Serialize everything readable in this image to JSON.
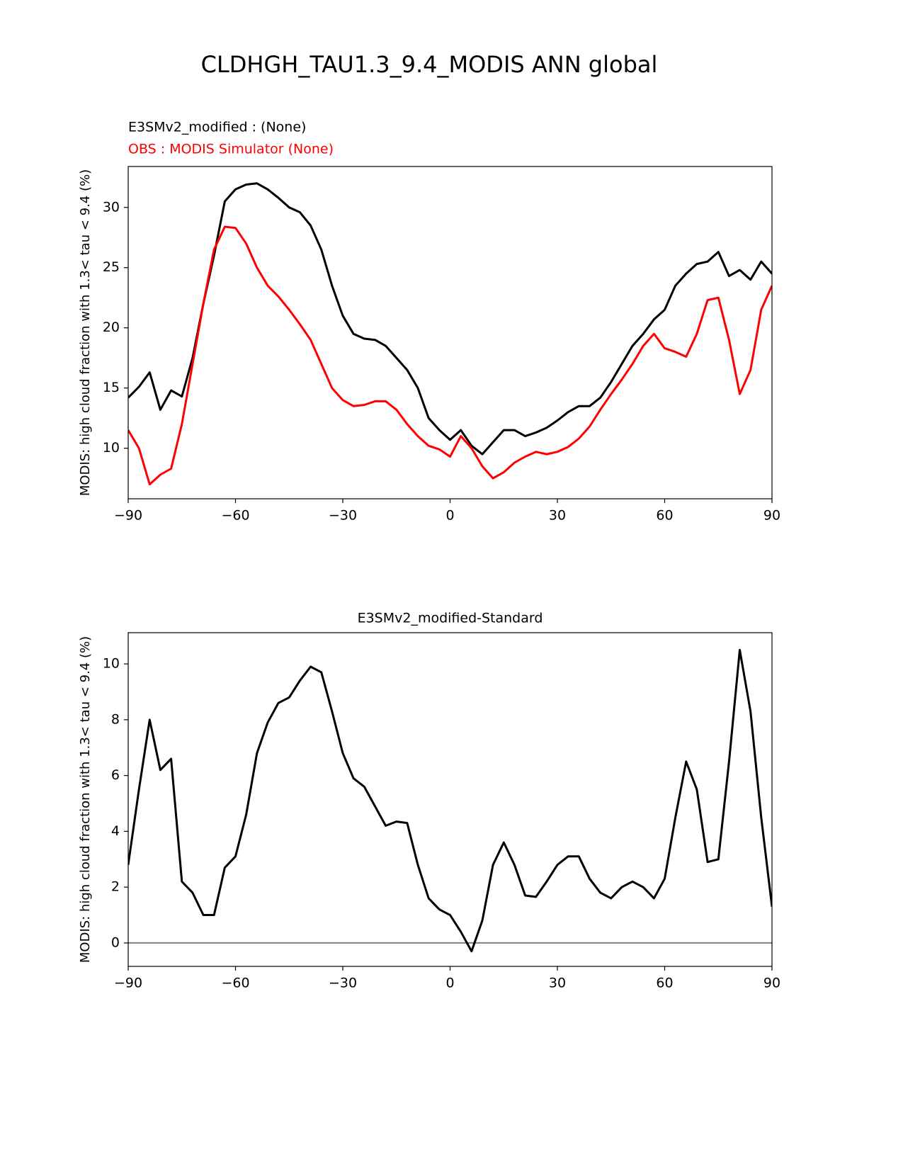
{
  "title": "CLDHGH_TAU1.3_9.4_MODIS ANN global",
  "chart_data": [
    {
      "type": "line",
      "ylabel": "MODIS: high cloud fraction with 1.3< tau < 9.4 (%)",
      "x": [
        -90,
        -87,
        -84,
        -81,
        -78,
        -75,
        -72,
        -69,
        -66,
        -63,
        -60,
        -57,
        -54,
        -51,
        -48,
        -45,
        -42,
        -39,
        -36,
        -33,
        -30,
        -27,
        -24,
        -21,
        -18,
        -15,
        -12,
        -9,
        -6,
        -3,
        0,
        3,
        6,
        9,
        12,
        15,
        18,
        21,
        24,
        27,
        30,
        33,
        36,
        39,
        42,
        45,
        48,
        51,
        54,
        57,
        60,
        63,
        66,
        69,
        72,
        75,
        78,
        81,
        84,
        87,
        90
      ],
      "series": [
        {
          "name": "E3SMv2_modified :   (None)",
          "color": "#000000",
          "values": [
            14.2,
            15.1,
            16.3,
            13.2,
            14.8,
            14.3,
            17.5,
            22,
            26,
            30.5,
            31.5,
            31.9,
            32.0,
            31.5,
            30.8,
            30,
            29.6,
            28.5,
            26.5,
            23.5,
            21,
            19.5,
            19.1,
            19.0,
            18.5,
            17.5,
            16.5,
            15,
            12.5,
            11.5,
            10.7,
            11.5,
            10.2,
            9.5,
            10.5,
            11.5,
            11.5,
            11.0,
            11.3,
            11.7,
            12.3,
            13.0,
            13.5,
            13.5,
            14.2,
            15.5,
            17,
            18.5,
            19.5,
            20.7,
            21.5,
            23.5,
            24.5,
            25.3,
            25.5,
            26.3,
            24.3,
            24.8,
            24.0,
            25.5,
            24.5
          ]
        },
        {
          "name": "OBS : MODIS Simulator (None)",
          "color": "#ff0000",
          "values": [
            11.5,
            10,
            7.0,
            7.8,
            8.3,
            12,
            17,
            22,
            26.5,
            28.4,
            28.3,
            27,
            25,
            23.5,
            22.6,
            21.5,
            20.3,
            19.0,
            17,
            15,
            14,
            13.5,
            13.6,
            13.9,
            13.9,
            13.2,
            12,
            11,
            10.2,
            9.9,
            9.3,
            11,
            10,
            8.5,
            7.5,
            8,
            8.8,
            9.3,
            9.7,
            9.5,
            9.7,
            10.1,
            10.8,
            11.8,
            13.2,
            14.5,
            15.7,
            17,
            18.5,
            19.5,
            18.3,
            18,
            17.6,
            19.5,
            22.3,
            22.5,
            19,
            14.5,
            16.5,
            21.5,
            23.5
          ]
        }
      ],
      "xlim": [
        -90,
        90
      ],
      "xticks": [
        {
          "value": -90,
          "label": "−90"
        },
        {
          "value": -60,
          "label": "−60"
        },
        {
          "value": -30,
          "label": "−30"
        },
        0,
        30,
        60,
        90
      ],
      "ylim": [
        5.8,
        33.4
      ],
      "yticks": [
        10,
        15,
        20,
        25,
        30
      ],
      "grid": false
    },
    {
      "type": "line",
      "title": "E3SMv2_modified-Standard",
      "ylabel": "MODIS: high cloud fraction with 1.3< tau < 9.4 (%)",
      "x": [
        -90,
        -87,
        -84,
        -81,
        -78,
        -75,
        -72,
        -69,
        -66,
        -63,
        -60,
        -57,
        -54,
        -51,
        -48,
        -45,
        -42,
        -39,
        -36,
        -33,
        -30,
        -27,
        -24,
        -21,
        -18,
        -15,
        -12,
        -9,
        -6,
        -3,
        0,
        3,
        6,
        9,
        12,
        15,
        18,
        21,
        24,
        27,
        30,
        33,
        36,
        39,
        42,
        45,
        48,
        51,
        54,
        57,
        60,
        63,
        66,
        69,
        72,
        75,
        78,
        81,
        84,
        87,
        90
      ],
      "color": "#000000",
      "values": [
        2.8,
        5.5,
        8.0,
        6.2,
        6.6,
        2.2,
        1.8,
        1.0,
        1.0,
        2.7,
        3.1,
        4.6,
        6.8,
        7.9,
        8.6,
        8.8,
        9.4,
        9.9,
        9.7,
        8.3,
        6.8,
        5.9,
        5.6,
        4.9,
        4.2,
        4.35,
        4.3,
        2.8,
        1.6,
        1.2,
        1.0,
        0.4,
        -0.3,
        0.8,
        2.8,
        3.6,
        2.8,
        1.7,
        1.65,
        2.2,
        2.8,
        3.1,
        3.1,
        2.3,
        1.8,
        1.6,
        2.0,
        2.2,
        2.0,
        1.6,
        2.3,
        4.5,
        6.5,
        5.5,
        2.9,
        3.0,
        6.5,
        10.5,
        8.3,
        4.5,
        1.3
      ],
      "reference_line": {
        "value": 0,
        "color": "#808080"
      },
      "xlim": [
        -90,
        90
      ],
      "xticks": [
        {
          "value": -90,
          "label": "−90"
        },
        {
          "value": -60,
          "label": "−60"
        },
        {
          "value": -30,
          "label": "−30"
        },
        0,
        30,
        60,
        90
      ],
      "ylim": [
        -0.84,
        11.12
      ],
      "yticks": [
        0,
        2,
        4,
        6,
        8,
        10
      ],
      "grid": false
    }
  ]
}
